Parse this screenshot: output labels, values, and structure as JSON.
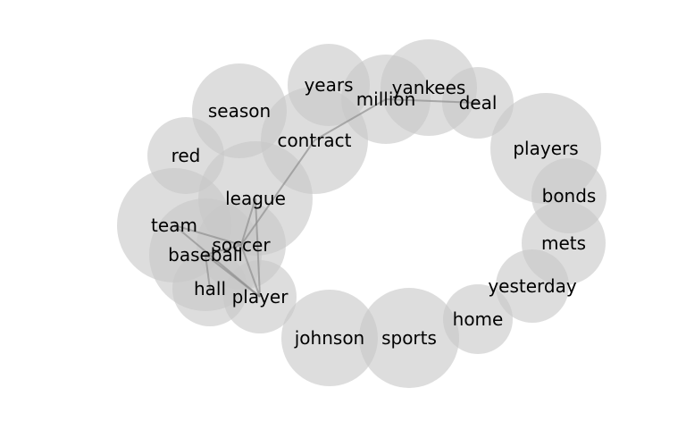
{
  "diagram": {
    "type": "word-bubble-network",
    "colors": {
      "bubble": "#c8c8c8",
      "edge": "#8a8a8a",
      "label": "#000000",
      "background": "#ffffff"
    },
    "nodes": [
      {
        "id": "years",
        "label": "years"
      },
      {
        "id": "yankees",
        "label": "yankees"
      },
      {
        "id": "million",
        "label": "million"
      },
      {
        "id": "deal",
        "label": "deal"
      },
      {
        "id": "season",
        "label": "season"
      },
      {
        "id": "contract",
        "label": "contract"
      },
      {
        "id": "players",
        "label": "players"
      },
      {
        "id": "red",
        "label": "red"
      },
      {
        "id": "bonds",
        "label": "bonds"
      },
      {
        "id": "league",
        "label": "league"
      },
      {
        "id": "team",
        "label": "team"
      },
      {
        "id": "mets",
        "label": "mets"
      },
      {
        "id": "soccer",
        "label": "soccer"
      },
      {
        "id": "baseball",
        "label": "baseball"
      },
      {
        "id": "yesterday",
        "label": "yesterday"
      },
      {
        "id": "hall",
        "label": "hall"
      },
      {
        "id": "player",
        "label": "player"
      },
      {
        "id": "home",
        "label": "home"
      },
      {
        "id": "johnson",
        "label": "johnson"
      },
      {
        "id": "sports",
        "label": "sports"
      }
    ],
    "edges": [
      {
        "source": "million",
        "target": "deal"
      },
      {
        "source": "million",
        "target": "contract"
      },
      {
        "source": "contract",
        "target": "soccer"
      },
      {
        "source": "league",
        "target": "soccer"
      },
      {
        "source": "league",
        "target": "player"
      },
      {
        "source": "team",
        "target": "soccer"
      },
      {
        "source": "team",
        "target": "player"
      },
      {
        "source": "soccer",
        "target": "baseball"
      },
      {
        "source": "soccer",
        "target": "player"
      },
      {
        "source": "baseball",
        "target": "hall"
      },
      {
        "source": "baseball",
        "target": "player"
      }
    ]
  }
}
